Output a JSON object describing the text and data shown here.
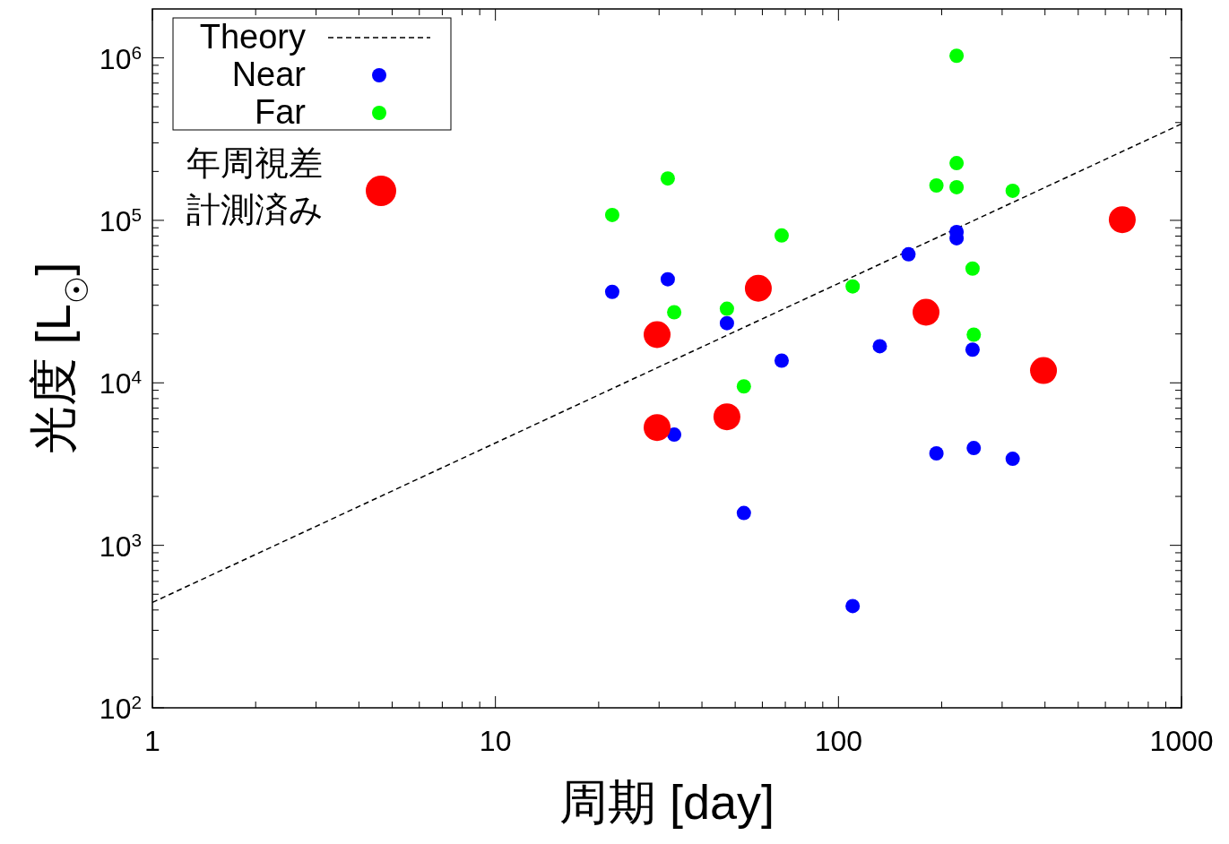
{
  "chart_data": {
    "type": "scatter",
    "xlabel": "周期 [day]",
    "ylabel": "光度 [L$_{☉}$]",
    "log": "xy",
    "xlim": [
      1,
      1000
    ],
    "ylim": [
      100,
      2000000
    ],
    "xticks": [
      1,
      {
        "value": 2,
        "label": null
      },
      {
        "value": 3,
        "label": null
      },
      {
        "value": 4,
        "label": null
      },
      {
        "value": 5,
        "label": null
      },
      {
        "value": 6,
        "label": null
      },
      {
        "value": 7,
        "label": null
      },
      {
        "value": 8,
        "label": null
      },
      {
        "value": 9,
        "label": null
      },
      10,
      {
        "value": 20,
        "label": null
      },
      {
        "value": 30,
        "label": null
      },
      {
        "value": 40,
        "label": null
      },
      {
        "value": 50,
        "label": null
      },
      {
        "value": 60,
        "label": null
      },
      {
        "value": 70,
        "label": null
      },
      {
        "value": 80,
        "label": null
      },
      {
        "value": 90,
        "label": null
      },
      100,
      {
        "value": 200,
        "label": null
      },
      {
        "value": 300,
        "label": null
      },
      {
        "value": 400,
        "label": null
      },
      {
        "value": 500,
        "label": null
      },
      {
        "value": 600,
        "label": null
      },
      {
        "value": 700,
        "label": null
      },
      {
        "value": 800,
        "label": null
      },
      {
        "value": 900,
        "label": null
      },
      1000
    ],
    "yticks": [
      {
        "value": 100,
        "label": "10$^{2}$"
      },
      {
        "value": 200,
        "label": null
      },
      {
        "value": 300,
        "label": null
      },
      {
        "value": 400,
        "label": null
      },
      {
        "value": 500,
        "label": null
      },
      {
        "value": 600,
        "label": null
      },
      {
        "value": 700,
        "label": null
      },
      {
        "value": 800,
        "label": null
      },
      {
        "value": 900,
        "label": null
      },
      {
        "value": 1000,
        "label": "10$^{3}$"
      },
      {
        "value": 2000,
        "label": null
      },
      {
        "value": 3000,
        "label": null
      },
      {
        "value": 4000,
        "label": null
      },
      {
        "value": 5000,
        "label": null
      },
      {
        "value": 6000,
        "label": null
      },
      {
        "value": 7000,
        "label": null
      },
      {
        "value": 8000,
        "label": null
      },
      {
        "value": 9000,
        "label": null
      },
      {
        "value": 10000,
        "label": "10$^{4}$"
      },
      {
        "value": 20000,
        "label": null
      },
      {
        "value": 30000,
        "label": null
      },
      {
        "value": 40000,
        "label": null
      },
      {
        "value": 50000,
        "label": null
      },
      {
        "value": 60000,
        "label": null
      },
      {
        "value": 70000,
        "label": null
      },
      {
        "value": 80000,
        "label": null
      },
      {
        "value": 90000,
        "label": null
      },
      {
        "value": 100000,
        "label": "10$^{5}$"
      },
      {
        "value": 200000,
        "label": null
      },
      {
        "value": 300000,
        "label": null
      },
      {
        "value": 400000,
        "label": null
      },
      {
        "value": 500000,
        "label": null
      },
      {
        "value": 600000,
        "label": null
      },
      {
        "value": 700000,
        "label": null
      },
      {
        "value": 800000,
        "label": null
      },
      {
        "value": 900000,
        "label": null
      },
      {
        "value": 1000000,
        "label": "10$^{6}$"
      }
    ],
    "grid": false,
    "legend": "top left",
    "marker": "circle",
    "series": [
      {
        "name": "Theory",
        "type": "line",
        "color": "#000000",
        "line_style": "dashed",
        "marker": "none",
        "x": [
          1,
          1000
        ],
        "values": [
          445,
          392000
        ]
      },
      {
        "name": "Near",
        "color": "#0000ff",
        "x": [
          21.9,
          31.8,
          47.3,
          33.2,
          53,
          68.3,
          110,
          132,
          160,
          193,
          221,
          221,
          246,
          248,
          322
        ],
        "values": [
          36300,
          43400,
          23300,
          4800,
          1580,
          13700,
          423,
          16800,
          61800,
          3680,
          84800,
          77600,
          16000,
          3970,
          3410
        ]
      },
      {
        "name": "Far",
        "color": "#00ff00",
        "x": [
          21.9,
          31.8,
          33.2,
          47.3,
          53,
          68.3,
          110,
          193,
          221,
          221,
          221,
          246,
          248,
          322
        ],
        "values": [
          108000,
          181000,
          27200,
          28600,
          9510,
          80700,
          39200,
          164000,
          1030000,
          225000,
          160000,
          50500,
          19800,
          152000
        ]
      },
      {
        "name": "年周視差計測済み",
        "color": "#ff0000",
        "x": [
          29.6,
          29.6,
          47.3,
          58.4,
          180,
          396,
          672
        ],
        "values": [
          19800,
          5310,
          6180,
          38200,
          27200,
          11900,
          101000
        ]
      }
    ]
  }
}
